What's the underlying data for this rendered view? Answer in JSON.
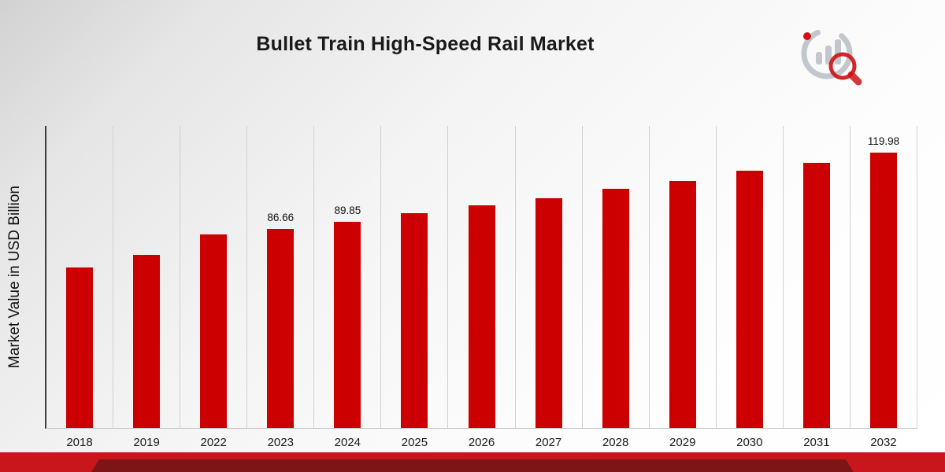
{
  "page": {
    "title": "Bullet Train High-Speed Rail Market",
    "ylabel": "Market Value in USD Billion"
  },
  "logo": {
    "name": "market-research-future-logo"
  },
  "colors": {
    "bar": "#CC0000",
    "ribbon_bright": "#C9161C",
    "ribbon_dark": "#7D1517",
    "logo_gray": "#C2C7CD",
    "logo_red": "#CE1418"
  },
  "chart_data": {
    "type": "bar",
    "title": "Bullet Train High-Speed Rail Market",
    "xlabel": "",
    "ylabel": "Market Value in USD Billion",
    "categories": [
      "2018",
      "2019",
      "2022",
      "2023",
      "2024",
      "2025",
      "2026",
      "2027",
      "2028",
      "2029",
      "2030",
      "2031",
      "2032"
    ],
    "values": [
      70.0,
      75.4,
      84.3,
      86.66,
      89.85,
      93.5,
      97.0,
      100.1,
      104.2,
      107.7,
      112.1,
      115.6,
      119.98
    ],
    "data_labels": [
      "",
      "",
      "",
      "86.66",
      "89.85",
      "",
      "",
      "",
      "",
      "",
      "",
      "",
      "119.98"
    ],
    "ylim": [
      0,
      132
    ],
    "grid": "vertical-only",
    "legend": "none",
    "bar_color": "#CC0000"
  }
}
